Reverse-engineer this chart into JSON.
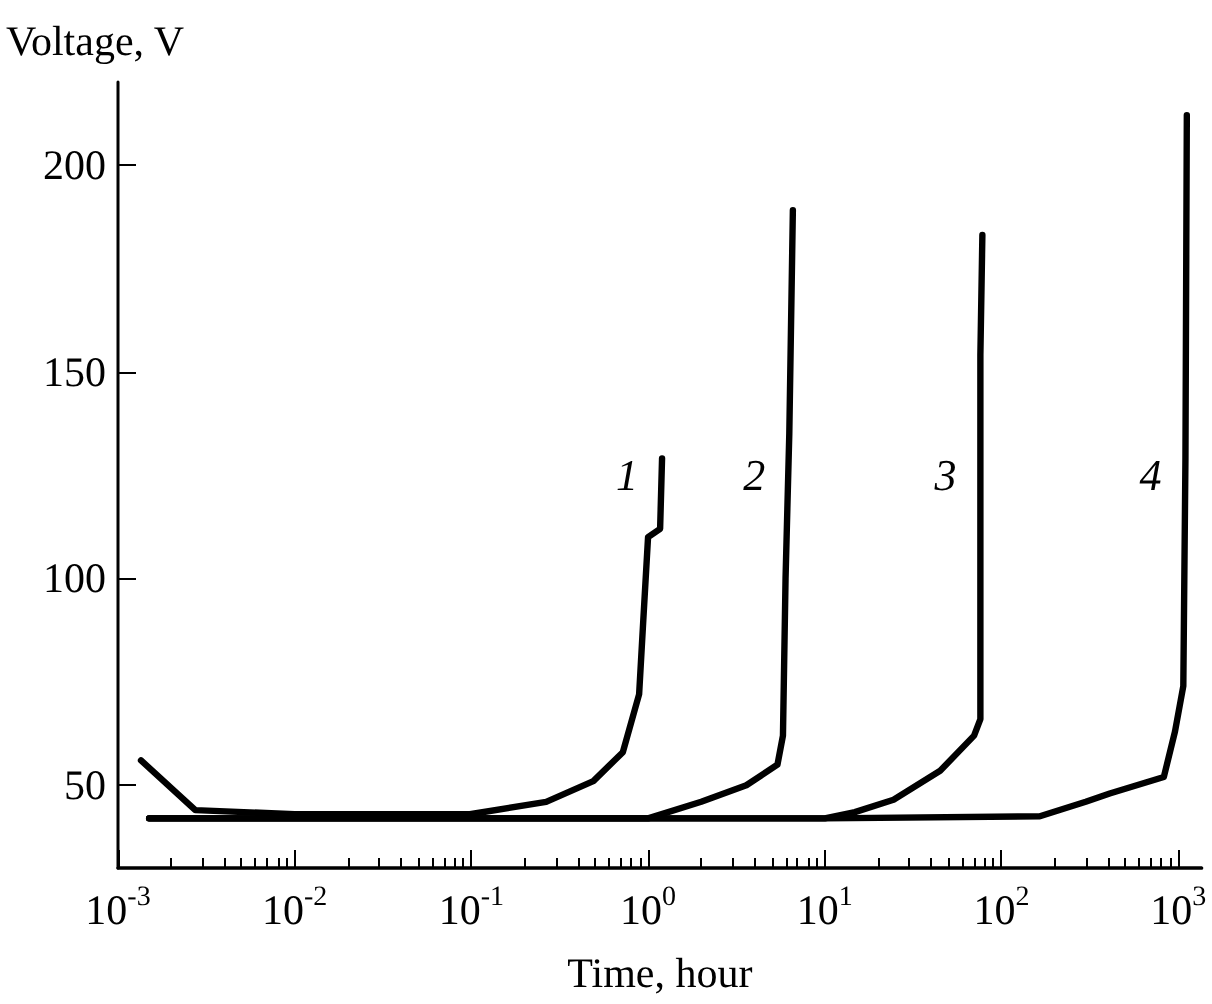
{
  "chart_data": {
    "type": "line",
    "xlabel": "Time, hour",
    "ylabel": "Voltage, V",
    "log": "x",
    "xlim": [
      0.001,
      1360
    ],
    "ylim": [
      30,
      220
    ],
    "xticks": [
      {
        "value": 0.001,
        "label": "10$^{-3}$"
      },
      {
        "value": 0.01,
        "label": "10$^{-2}$"
      },
      {
        "value": 0.1,
        "label": "10$^{-1}$"
      },
      {
        "value": 1,
        "label": "10$^{0}$"
      },
      {
        "value": 10,
        "label": "10$^{1}$"
      },
      {
        "value": 100,
        "label": "10$^{2}$"
      },
      {
        "value": 1000,
        "label": "10$^{3}$"
      }
    ],
    "yticks": [
      50,
      100,
      150,
      200
    ],
    "grid": false,
    "marker": "none",
    "line_style": "solid",
    "series": [
      {
        "name": "1",
        "color": "#000000",
        "x": [
          0.00135,
          0.00274,
          0.01,
          0.098,
          0.265,
          0.49,
          0.72,
          0.89,
          0.94,
          1.0,
          1.17,
          1.2
        ],
        "values": [
          56,
          44,
          43,
          43,
          46,
          51,
          58,
          72,
          90,
          110,
          112,
          129
        ]
      },
      {
        "name": "2",
        "color": "#000000",
        "x": [
          0.0015,
          0.01,
          0.1,
          1.0,
          2.0,
          3.6,
          5.4,
          5.8,
          6.0,
          6.3,
          6.6
        ],
        "values": [
          42,
          42,
          42,
          42,
          46,
          50,
          55,
          62,
          100,
          135,
          189
        ]
      },
      {
        "name": "3",
        "color": "#000000",
        "x": [
          0.0015,
          0.1,
          1,
          10,
          14.8,
          24.5,
          45,
          70,
          76,
          76,
          78
        ],
        "values": [
          42,
          42,
          42,
          42,
          43.5,
          46.5,
          53.5,
          62,
          66,
          154,
          183
        ]
      },
      {
        "name": "4",
        "color": "#000000",
        "x": [
          0.0015,
          0.1,
          10,
          165,
          300,
          410,
          830,
          960,
          1070,
          1100,
          1120
        ],
        "values": [
          42,
          42,
          42,
          42.5,
          46,
          48,
          52,
          63,
          74,
          129,
          212
        ]
      }
    ]
  }
}
